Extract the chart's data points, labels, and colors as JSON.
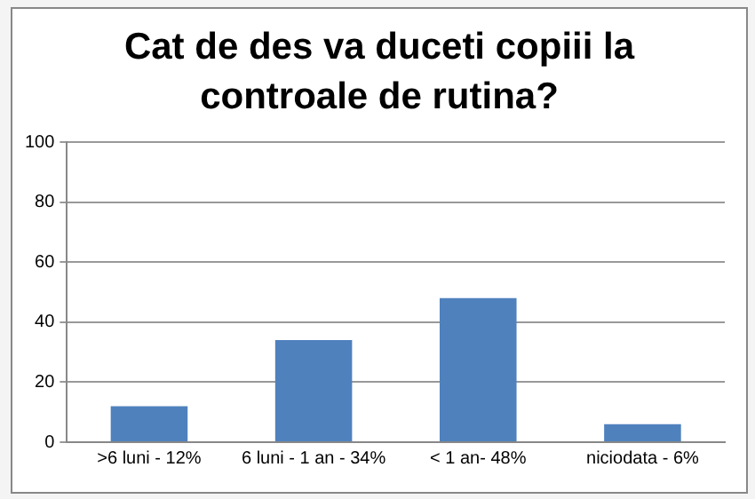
{
  "chart_data": {
    "type": "bar",
    "title": "Cat de des va duceti copiii la controale de rutina?",
    "categories": [
      ">6 luni - 12%",
      "6 luni - 1 an - 34%",
      "< 1 an- 48%",
      "niciodata - 6%"
    ],
    "values": [
      12,
      34,
      48,
      6
    ],
    "color": "#4f81bd",
    "ylim": [
      0,
      100
    ],
    "yticks": [
      0,
      20,
      40,
      60,
      80,
      100
    ],
    "grid": "y",
    "legend": false
  }
}
